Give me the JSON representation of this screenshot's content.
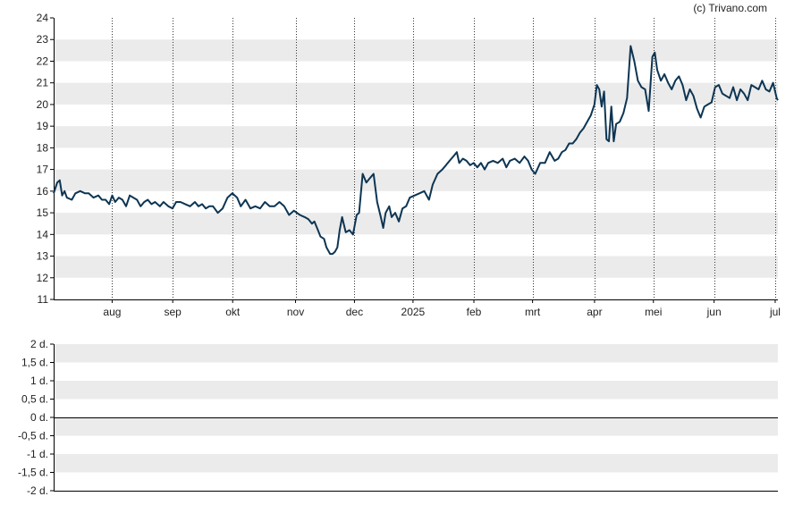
{
  "credit": "(c) Trivano.com",
  "colors": {
    "line": "#0d3553",
    "band": "#ebebeb",
    "grid": "#333333",
    "axis": "#000000"
  },
  "chart_data": [
    {
      "type": "line",
      "ylim": [
        11,
        24
      ],
      "yticks": [
        "11",
        "12",
        "13",
        "14",
        "15",
        "16",
        "17",
        "18",
        "19",
        "20",
        "21",
        "22",
        "23",
        "24"
      ],
      "xticks": [
        "aug",
        "sep",
        "okt",
        "nov",
        "dec",
        "2025",
        "feb",
        "mrt",
        "apr",
        "mei",
        "jun",
        "jul"
      ],
      "xtick_pos": [
        0.0969,
        0.1973,
        0.2966,
        0.4008,
        0.4984,
        0.5954,
        0.6963,
        0.7935,
        0.8962,
        0.9937,
        1.0943,
        1.1955
      ],
      "xlim": [
        0,
        1.2
      ],
      "grid": "dotted vertical at month ticks, alternating horizontal bands",
      "series": [
        {
          "values": [
            [
              0.0,
              15.9
            ],
            [
              0.006,
              16.4
            ],
            [
              0.01,
              16.5
            ],
            [
              0.014,
              15.8
            ],
            [
              0.018,
              16.0
            ],
            [
              0.022,
              15.7
            ],
            [
              0.03,
              15.6
            ],
            [
              0.036,
              15.9
            ],
            [
              0.044,
              16.0
            ],
            [
              0.052,
              15.9
            ],
            [
              0.058,
              15.9
            ],
            [
              0.066,
              15.7
            ],
            [
              0.074,
              15.8
            ],
            [
              0.08,
              15.6
            ],
            [
              0.086,
              15.6
            ],
            [
              0.092,
              15.4
            ],
            [
              0.097,
              15.8
            ],
            [
              0.102,
              15.5
            ],
            [
              0.108,
              15.7
            ],
            [
              0.114,
              15.6
            ],
            [
              0.12,
              15.3
            ],
            [
              0.126,
              15.8
            ],
            [
              0.132,
              15.7
            ],
            [
              0.138,
              15.6
            ],
            [
              0.144,
              15.3
            ],
            [
              0.15,
              15.5
            ],
            [
              0.156,
              15.6
            ],
            [
              0.162,
              15.4
            ],
            [
              0.168,
              15.5
            ],
            [
              0.176,
              15.3
            ],
            [
              0.182,
              15.5
            ],
            [
              0.19,
              15.3
            ],
            [
              0.197,
              15.2
            ],
            [
              0.203,
              15.5
            ],
            [
              0.21,
              15.5
            ],
            [
              0.218,
              15.4
            ],
            [
              0.226,
              15.3
            ],
            [
              0.234,
              15.5
            ],
            [
              0.24,
              15.3
            ],
            [
              0.246,
              15.4
            ],
            [
              0.252,
              15.2
            ],
            [
              0.258,
              15.3
            ],
            [
              0.264,
              15.3
            ],
            [
              0.272,
              15.0
            ],
            [
              0.28,
              15.2
            ],
            [
              0.288,
              15.7
            ],
            [
              0.296,
              15.9
            ],
            [
              0.304,
              15.7
            ],
            [
              0.31,
              15.3
            ],
            [
              0.318,
              15.6
            ],
            [
              0.326,
              15.2
            ],
            [
              0.334,
              15.3
            ],
            [
              0.342,
              15.2
            ],
            [
              0.35,
              15.5
            ],
            [
              0.358,
              15.3
            ],
            [
              0.366,
              15.3
            ],
            [
              0.374,
              15.5
            ],
            [
              0.382,
              15.3
            ],
            [
              0.39,
              14.9
            ],
            [
              0.398,
              15.1
            ],
            [
              0.408,
              14.9
            ],
            [
              0.416,
              14.8
            ],
            [
              0.422,
              14.7
            ],
            [
              0.428,
              14.5
            ],
            [
              0.432,
              14.6
            ],
            [
              0.438,
              14.2
            ],
            [
              0.442,
              13.9
            ],
            [
              0.448,
              13.8
            ],
            [
              0.452,
              13.4
            ],
            [
              0.458,
              13.1
            ],
            [
              0.462,
              13.1
            ],
            [
              0.466,
              13.2
            ],
            [
              0.47,
              13.4
            ],
            [
              0.474,
              14.2
            ],
            [
              0.478,
              14.8
            ],
            [
              0.484,
              14.1
            ],
            [
              0.49,
              14.2
            ],
            [
              0.496,
              14.0
            ],
            [
              0.502,
              14.9
            ],
            [
              0.506,
              15.0
            ],
            [
              0.512,
              16.8
            ],
            [
              0.518,
              16.4
            ],
            [
              0.524,
              16.6
            ],
            [
              0.53,
              16.8
            ],
            [
              0.536,
              15.5
            ],
            [
              0.542,
              14.8
            ],
            [
              0.546,
              14.3
            ],
            [
              0.55,
              15.0
            ],
            [
              0.556,
              15.3
            ],
            [
              0.56,
              14.8
            ],
            [
              0.566,
              15.0
            ],
            [
              0.572,
              14.6
            ],
            [
              0.578,
              15.2
            ],
            [
              0.584,
              15.3
            ],
            [
              0.59,
              15.7
            ],
            [
              0.598,
              15.8
            ],
            [
              0.606,
              15.9
            ],
            [
              0.614,
              16.0
            ],
            [
              0.622,
              15.6
            ],
            [
              0.628,
              16.3
            ],
            [
              0.636,
              16.8
            ],
            [
              0.644,
              17.0
            ],
            [
              0.65,
              17.2
            ],
            [
              0.656,
              17.4
            ],
            [
              0.662,
              17.6
            ],
            [
              0.668,
              17.8
            ],
            [
              0.672,
              17.3
            ],
            [
              0.678,
              17.5
            ],
            [
              0.684,
              17.4
            ],
            [
              0.69,
              17.2
            ],
            [
              0.696,
              17.3
            ],
            [
              0.702,
              17.1
            ],
            [
              0.708,
              17.3
            ],
            [
              0.714,
              17.0
            ],
            [
              0.72,
              17.3
            ],
            [
              0.728,
              17.4
            ],
            [
              0.736,
              17.3
            ],
            [
              0.744,
              17.5
            ],
            [
              0.75,
              17.1
            ],
            [
              0.756,
              17.4
            ],
            [
              0.764,
              17.5
            ],
            [
              0.772,
              17.3
            ],
            [
              0.78,
              17.6
            ],
            [
              0.786,
              17.4
            ],
            [
              0.792,
              17.0
            ],
            [
              0.798,
              16.8
            ],
            [
              0.806,
              17.3
            ],
            [
              0.814,
              17.3
            ],
            [
              0.822,
              17.8
            ],
            [
              0.83,
              17.4
            ],
            [
              0.836,
              17.5
            ],
            [
              0.842,
              17.8
            ],
            [
              0.848,
              17.9
            ],
            [
              0.854,
              18.2
            ],
            [
              0.86,
              18.2
            ],
            [
              0.866,
              18.4
            ],
            [
              0.872,
              18.7
            ],
            [
              0.878,
              18.9
            ],
            [
              0.884,
              19.2
            ],
            [
              0.89,
              19.5
            ],
            [
              0.896,
              20.0
            ],
            [
              0.9,
              20.9
            ],
            [
              0.904,
              20.7
            ],
            [
              0.908,
              19.9
            ],
            [
              0.912,
              20.6
            ],
            [
              0.916,
              18.4
            ],
            [
              0.92,
              18.3
            ],
            [
              0.924,
              19.9
            ],
            [
              0.928,
              18.3
            ],
            [
              0.932,
              19.1
            ],
            [
              0.938,
              19.2
            ],
            [
              0.944,
              19.6
            ],
            [
              0.95,
              20.3
            ],
            [
              0.956,
              22.7
            ],
            [
              0.962,
              22.0
            ],
            [
              0.968,
              21.1
            ],
            [
              0.974,
              20.8
            ],
            [
              0.98,
              20.7
            ],
            [
              0.986,
              19.7
            ],
            [
              0.992,
              22.2
            ],
            [
              0.996,
              22.4
            ],
            [
              1.0,
              21.6
            ],
            [
              1.006,
              21.1
            ],
            [
              1.012,
              21.4
            ],
            [
              1.018,
              21.0
            ],
            [
              1.024,
              20.7
            ],
            [
              1.03,
              21.1
            ],
            [
              1.036,
              21.3
            ],
            [
              1.042,
              20.9
            ],
            [
              1.048,
              20.2
            ],
            [
              1.054,
              20.7
            ],
            [
              1.06,
              20.4
            ],
            [
              1.066,
              19.8
            ],
            [
              1.072,
              19.4
            ],
            [
              1.078,
              19.9
            ],
            [
              1.084,
              20.0
            ],
            [
              1.09,
              20.1
            ],
            [
              1.096,
              20.8
            ],
            [
              1.102,
              20.9
            ],
            [
              1.108,
              20.5
            ],
            [
              1.114,
              20.4
            ],
            [
              1.12,
              20.3
            ],
            [
              1.126,
              20.8
            ],
            [
              1.132,
              20.2
            ],
            [
              1.138,
              20.7
            ],
            [
              1.144,
              20.5
            ],
            [
              1.15,
              20.2
            ],
            [
              1.156,
              20.9
            ],
            [
              1.162,
              20.8
            ],
            [
              1.168,
              20.7
            ],
            [
              1.174,
              21.1
            ],
            [
              1.18,
              20.7
            ],
            [
              1.186,
              20.6
            ],
            [
              1.192,
              21.0
            ],
            [
              1.198,
              20.3
            ],
            [
              1.2,
              20.2
            ]
          ]
        }
      ]
    },
    {
      "type": "line",
      "ylim": [
        -2,
        2
      ],
      "yticks": [
        "-2 d.",
        "-1,5 d.",
        "-1 d.",
        "-0,5 d.",
        "0 d.",
        "0,5 d.",
        "1 d.",
        "1,5 d.",
        "2 d."
      ],
      "zero_line": 0,
      "grid": "alternating horizontal bands",
      "series": []
    }
  ]
}
